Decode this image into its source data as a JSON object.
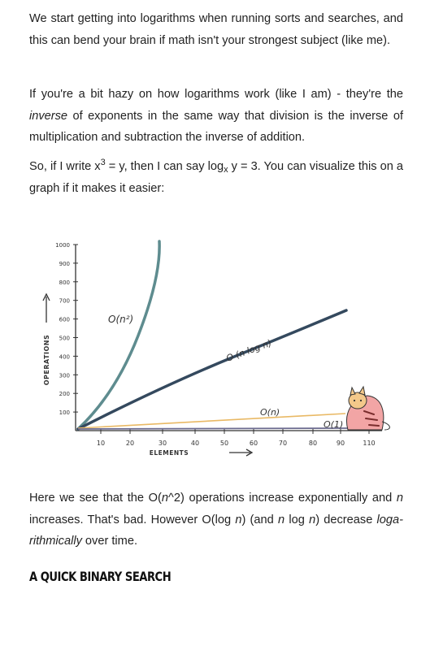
{
  "p1": {
    "text": "We start getting into logarithms when running sorts and searches, and this can bend your brain if math isn't your strongest subject (like me)."
  },
  "p2": {
    "a": "If you're a bit hazy on how logarithms work (like I am) - they're the ",
    "em": "inverse",
    "b": " of exponents in the same way that division is the inverse of multiplication and subtraction the inverse of addition."
  },
  "p3": {
    "a": "So, if I write x",
    "sup": "3",
    "b": " = y, then I can say log",
    "sub": "x",
    "c": " y = 3. You can visualize this on a graph if it makes it easier:"
  },
  "chart_data": {
    "type": "line",
    "xlabel": "ELEMENTS",
    "ylabel": "OPERATIONS",
    "xticks": [
      "10",
      "20",
      "30",
      "40",
      "50",
      "60",
      "70",
      "80",
      "90",
      "110"
    ],
    "yticks": [
      "100",
      "200",
      "300",
      "400",
      "500",
      "600",
      "700",
      "800",
      "900",
      "1000"
    ],
    "series": [
      {
        "name": "O(n²)",
        "color": "#5e8c8f"
      },
      {
        "name": "O (n log n)",
        "color": "#34495e"
      },
      {
        "name": "O(n)",
        "color": "#e9b965"
      },
      {
        "name": "O(1)",
        "color": "#6b6a8e"
      }
    ]
  },
  "p4": {
    "a": "Here we see that the O(",
    "em1": "n",
    "b": "^2) operations increase exponentially and ",
    "em2": "n",
    "c": " increases. That's bad. However O(log ",
    "em3": "n",
    "d": ") (and ",
    "em4": "n",
    "e": " log ",
    "em5": "n",
    "f": ") decrease ",
    "em6": "loga-rithmically",
    "g": " over time."
  },
  "section_title": "A QUICK BINARY SEARCH"
}
